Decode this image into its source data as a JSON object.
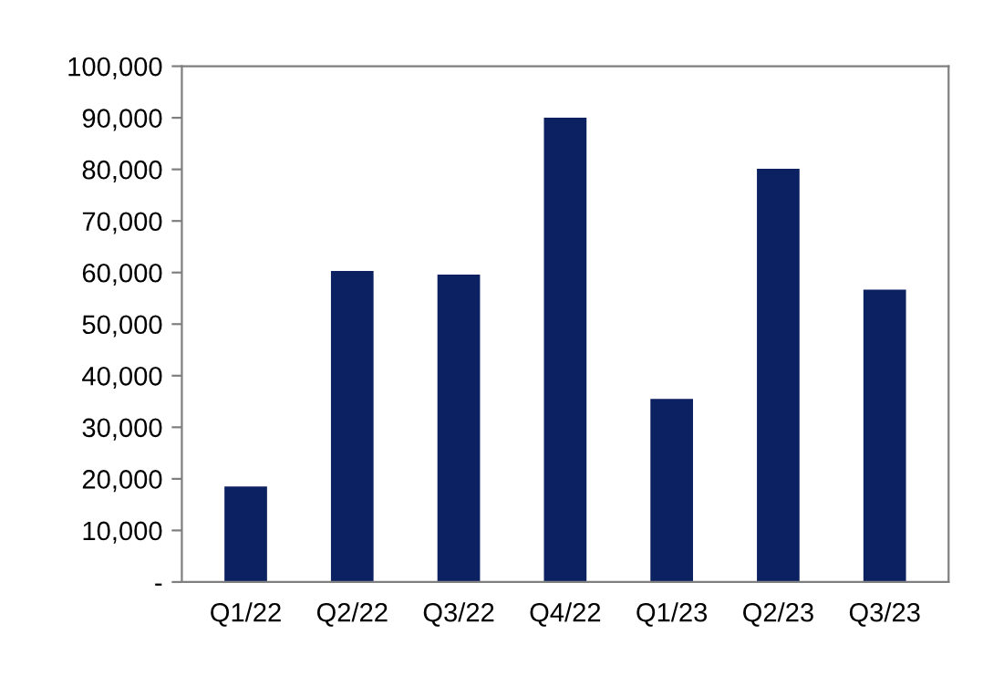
{
  "chart_data": {
    "type": "bar",
    "categories": [
      "Q1/22",
      "Q2/22",
      "Q3/22",
      "Q4/22",
      "Q1/23",
      "Q2/23",
      "Q3/23"
    ],
    "values": [
      18500,
      60300,
      59600,
      90000,
      35500,
      80100,
      56700
    ],
    "color": "#0b2161",
    "ylim": [
      0,
      100000
    ],
    "yticks": [
      {
        "value": 0,
        "label": "-"
      },
      {
        "value": 10000,
        "label": "10,000"
      },
      {
        "value": 20000,
        "label": "20,000"
      },
      {
        "value": 30000,
        "label": "30,000"
      },
      {
        "value": 40000,
        "label": "40,000"
      },
      {
        "value": 50000,
        "label": "50,000"
      },
      {
        "value": 60000,
        "label": "60,000"
      },
      {
        "value": 70000,
        "label": "70,000"
      },
      {
        "value": 80000,
        "label": "80,000"
      },
      {
        "value": 90000,
        "label": "90,000"
      },
      {
        "value": 100000,
        "label": "100,000"
      }
    ],
    "grid": false,
    "legend": false
  }
}
